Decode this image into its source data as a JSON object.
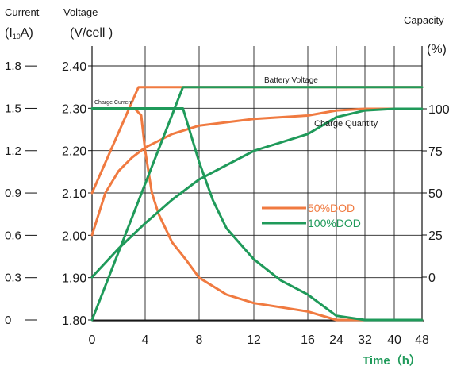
{
  "chart_data": {
    "type": "line",
    "axis_labels": {
      "current_title": "Current",
      "current_unit_prefix": "(I",
      "current_unit_sub": "10",
      "current_unit_suffix": "A)",
      "voltage_title": "Voltage",
      "voltage_unit": "(V/cell  )",
      "capacity_title": "Capacity",
      "capacity_unit": "(%)",
      "x_title": "Time（h）"
    },
    "current_ticks": [
      "1.8",
      "1.5",
      "1.2",
      "0.9",
      "0.6",
      "0.3",
      "0"
    ],
    "voltage_ticks": [
      "2.40",
      "2.30",
      "2.20",
      "2.10",
      "2.00",
      "1.90",
      "1.80"
    ],
    "capacity_ticks": [
      "100",
      "75",
      "50",
      "25",
      "0"
    ],
    "x_ticks": [
      "0",
      "4",
      "8",
      "12",
      "16",
      "24",
      "32",
      "40",
      "48"
    ],
    "grid": true,
    "annotations": {
      "battery_voltage": "Battery Voltage",
      "charge_current": "Charge Current",
      "charge_quantity": "Charge Quantity"
    },
    "legend": {
      "position": "center-right",
      "items": [
        {
          "label": "50%DOD",
          "color": "#f07a40"
        },
        {
          "label": "100%DOD",
          "color": "#1f9a5a"
        }
      ]
    },
    "colors": {
      "dod50": "#f07a40",
      "dod100": "#1f9a5a",
      "grid": "#222222",
      "x_title": "#1f9a5a"
    },
    "series": [
      {
        "name": "50%DOD",
        "quantity": "Battery Voltage",
        "axis": "voltage",
        "points": [
          [
            0,
            2.1
          ],
          [
            3.5,
            2.35
          ],
          [
            48,
            2.35
          ]
        ]
      },
      {
        "name": "50%DOD",
        "quantity": "Charge Current",
        "axis": "current",
        "points": [
          [
            0,
            1.5
          ],
          [
            3.2,
            1.5
          ],
          [
            3.7,
            1.45
          ],
          [
            4,
            1.2
          ],
          [
            4.5,
            0.9
          ],
          [
            5,
            0.75
          ],
          [
            6,
            0.55
          ],
          [
            7,
            0.43
          ],
          [
            8,
            0.3
          ],
          [
            10,
            0.18
          ],
          [
            12,
            0.12
          ],
          [
            16,
            0.06
          ],
          [
            24,
            0.0
          ],
          [
            32,
            0.0
          ],
          [
            48,
            0.0
          ]
        ]
      },
      {
        "name": "50%DOD",
        "quantity": "Charge Quantity",
        "axis": "capacity",
        "points": [
          [
            0,
            25
          ],
          [
            1,
            50
          ],
          [
            2,
            63
          ],
          [
            3,
            71
          ],
          [
            4,
            77
          ],
          [
            6,
            85
          ],
          [
            8,
            90
          ],
          [
            12,
            94
          ],
          [
            16,
            96
          ],
          [
            24,
            99
          ],
          [
            32,
            100
          ],
          [
            48,
            100
          ]
        ]
      },
      {
        "name": "100%DOD",
        "quantity": "Battery Voltage",
        "axis": "voltage",
        "points": [
          [
            0,
            1.8
          ],
          [
            6.8,
            2.35
          ],
          [
            48,
            2.35
          ]
        ]
      },
      {
        "name": "100%DOD",
        "quantity": "Charge Current",
        "axis": "current",
        "points": [
          [
            0,
            1.5
          ],
          [
            6.8,
            1.5
          ],
          [
            8,
            1.12
          ],
          [
            9,
            0.85
          ],
          [
            10,
            0.65
          ],
          [
            12,
            0.43
          ],
          [
            14,
            0.28
          ],
          [
            16,
            0.18
          ],
          [
            24,
            0.03
          ],
          [
            32,
            0.0
          ],
          [
            48,
            0.0
          ]
        ]
      },
      {
        "name": "100%DOD",
        "quantity": "Charge Quantity",
        "axis": "capacity",
        "points": [
          [
            0,
            0
          ],
          [
            2,
            17
          ],
          [
            4,
            32
          ],
          [
            6,
            46
          ],
          [
            8,
            58
          ],
          [
            12,
            75
          ],
          [
            16,
            85
          ],
          [
            24,
            95
          ],
          [
            32,
            99
          ],
          [
            40,
            100
          ],
          [
            48,
            100
          ]
        ]
      }
    ]
  }
}
